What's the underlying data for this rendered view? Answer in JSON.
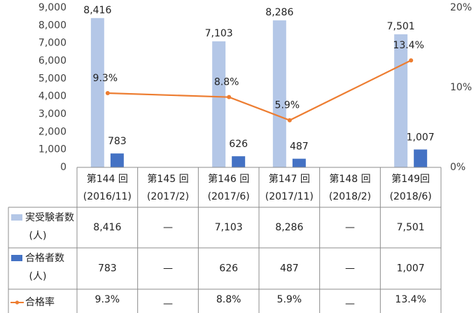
{
  "chart_data": {
    "type": "bar+line",
    "categories": [
      {
        "line1": "第144 回",
        "line2": "(2016/11)"
      },
      {
        "line1": "第145 回",
        "line2": "(2017/2)"
      },
      {
        "line1": "第146 回",
        "line2": "(2017/6)"
      },
      {
        "line1": "第147 回",
        "line2": "(2017/11)"
      },
      {
        "line1": "第148 回",
        "line2": "(2018/2)"
      },
      {
        "line1": "第149回",
        "line2": "(2018/6)"
      }
    ],
    "series": [
      {
        "name": "実受験者数",
        "name_line2": "(人)",
        "kind": "bar",
        "axis": "left",
        "color": "#b4c7e7",
        "values": [
          8416,
          null,
          7103,
          8286,
          null,
          7501
        ],
        "labels": [
          "8,416",
          "",
          "7,103",
          "8,286",
          "",
          "7,501"
        ],
        "table": [
          "8,416",
          "—",
          "7,103",
          "8,286",
          "—",
          "7,501"
        ]
      },
      {
        "name": "合格者数",
        "name_line2": "(人)",
        "kind": "bar",
        "axis": "left",
        "color": "#4472c4",
        "values": [
          783,
          null,
          626,
          487,
          null,
          1007
        ],
        "labels": [
          "783",
          "",
          "626",
          "487",
          "",
          "1,007"
        ],
        "table": [
          "783",
          "—",
          "626",
          "487",
          "—",
          "1,007"
        ]
      },
      {
        "name": "合格率",
        "kind": "line",
        "axis": "right",
        "color": "#ed7d31",
        "values": [
          9.3,
          null,
          8.8,
          5.9,
          null,
          13.4
        ],
        "labels": [
          "9.3%",
          "",
          "8.8%",
          "5.9%",
          "",
          "13.4%"
        ],
        "table": [
          "9.3%",
          "—",
          "8.8%",
          "5.9%",
          "—",
          "13.4%"
        ]
      }
    ],
    "left_axis": {
      "min": 0,
      "max": 9000,
      "ticks": [
        0,
        1000,
        2000,
        3000,
        4000,
        5000,
        6000,
        7000,
        8000,
        9000
      ],
      "tick_labels": [
        "0",
        "1,000",
        "2,000",
        "3,000",
        "4,000",
        "5,000",
        "6,000",
        "7,000",
        "8,000",
        "9,000"
      ]
    },
    "right_axis": {
      "min": 0,
      "max": 20,
      "ticks": [
        0,
        10,
        20
      ],
      "tick_labels": [
        "0%",
        "10%",
        "20%"
      ]
    },
    "grid": false,
    "legend": "data table"
  }
}
